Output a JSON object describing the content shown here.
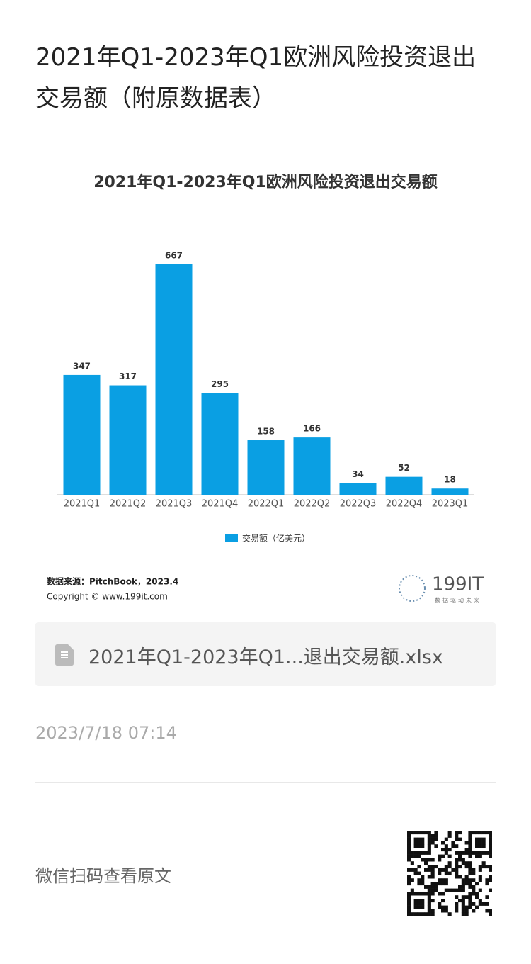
{
  "header": {
    "title": "2021年Q1-2023年Q1欧洲风险投资退出交易额（附原数据表）"
  },
  "chart_data": {
    "type": "bar",
    "title": "2021年Q1-2023年Q1欧洲风险投资退出交易额",
    "categories": [
      "2021Q1",
      "2021Q2",
      "2021Q3",
      "2021Q4",
      "2022Q1",
      "2022Q2",
      "2022Q3",
      "2022Q4",
      "2023Q1"
    ],
    "series": [
      {
        "name": "交易额（亿美元）",
        "color": "#0a9fe3",
        "values": [
          347,
          317,
          667,
          295,
          158,
          166,
          34,
          52,
          18
        ]
      }
    ]
  },
  "source": "数据来源：PitchBook，2023.4",
  "copyright": "Copyright © www.199it.com",
  "logo": {
    "name": "199IT",
    "slogan": "数据驱动未来"
  },
  "attachment": {
    "filename": "2021年Q1-2023年Q1...退出交易额.xlsx"
  },
  "date": "2023/7/18 07:14",
  "footer": {
    "scan_text": "微信扫码查看原文"
  }
}
